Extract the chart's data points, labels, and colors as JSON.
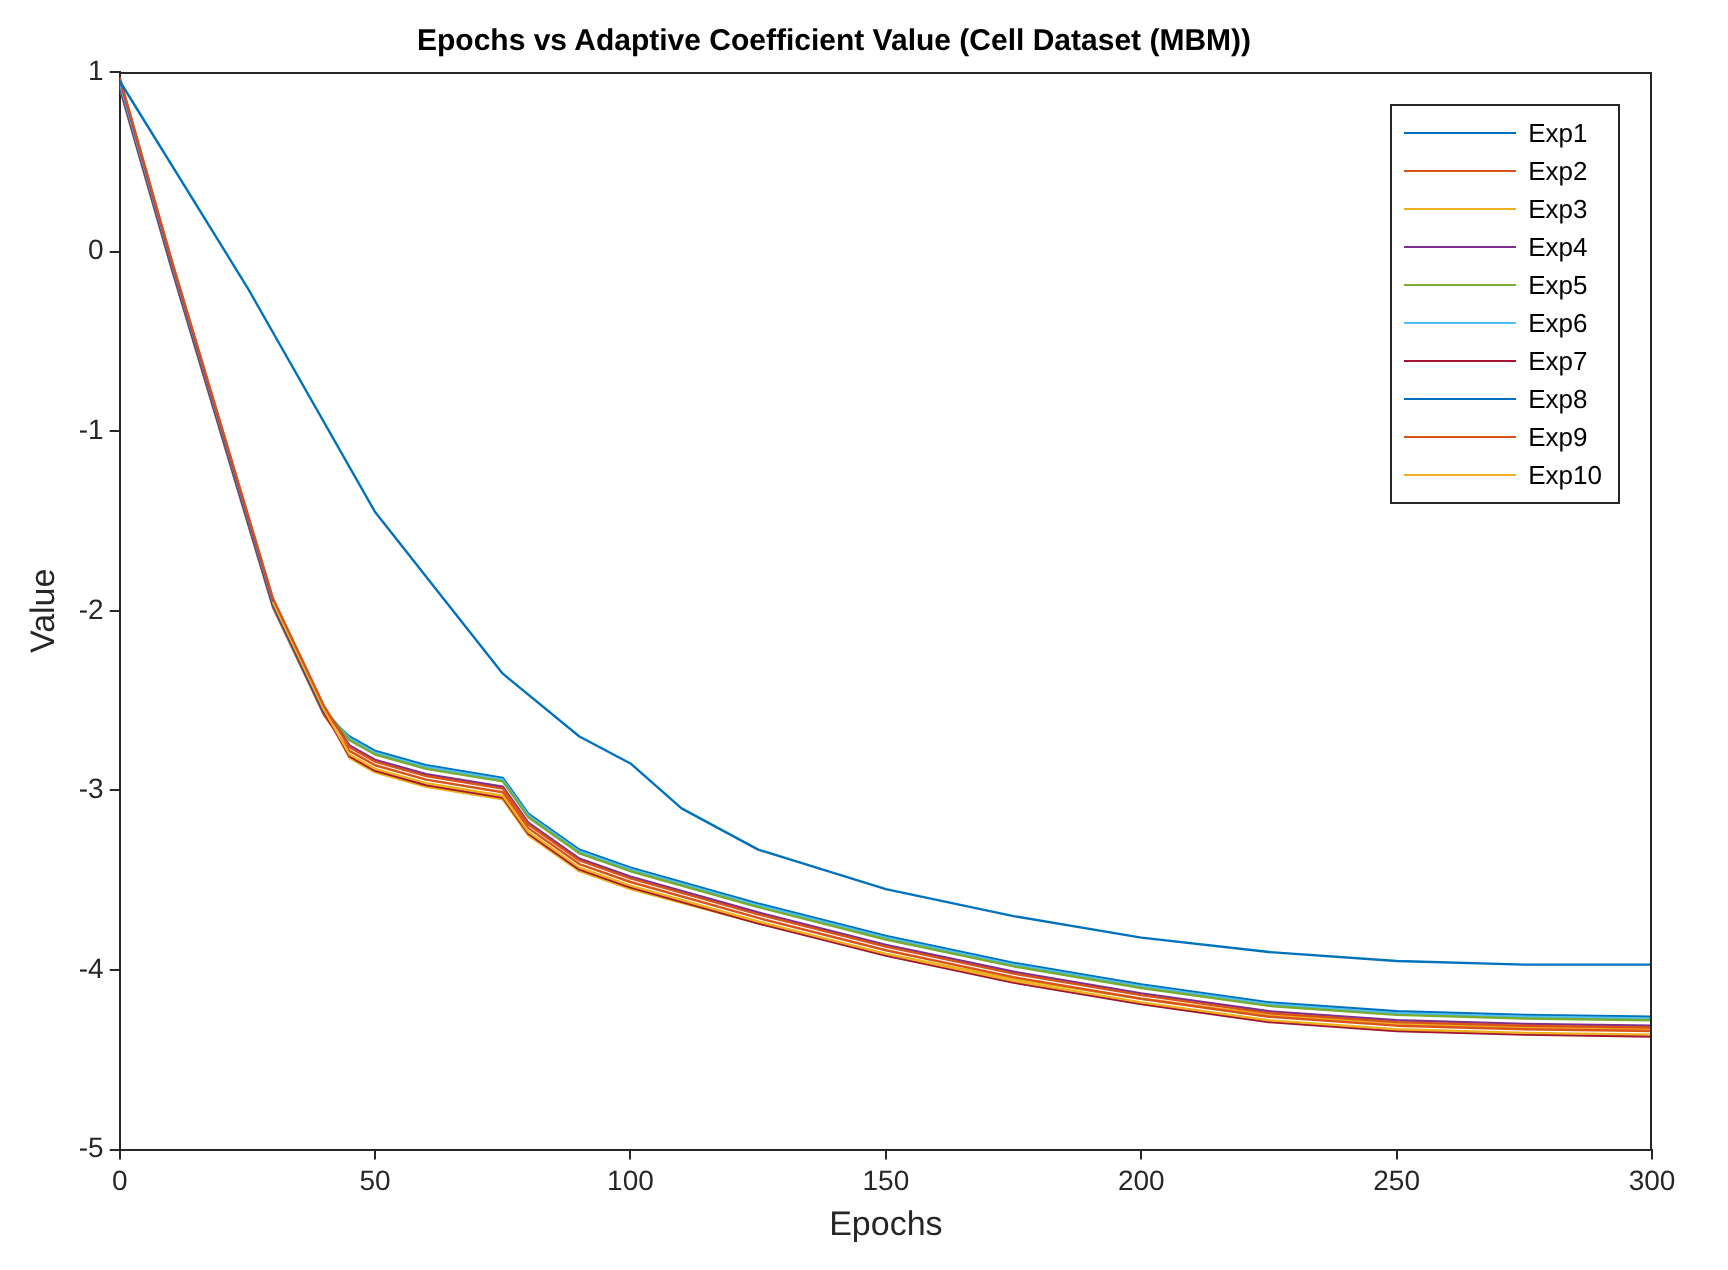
{
  "chart_data": {
    "type": "line",
    "title": "Epochs vs Adaptive Coefficient Value (Cell Dataset (MBM))",
    "xlabel": "Epochs",
    "ylabel": "Value",
    "x": [
      0,
      10,
      20,
      30,
      40,
      45,
      50,
      60,
      75,
      80,
      90,
      100,
      125,
      150,
      175,
      200,
      225,
      250,
      275,
      300
    ],
    "series": [
      {
        "name": "Exp1",
        "color": "#0072bd",
        "x": [
          0,
          25,
          50,
          75,
          90,
          100,
          110,
          125,
          150,
          175,
          200,
          225,
          250,
          275,
          300
        ],
        "values": [
          0.95,
          -0.2,
          -1.45,
          -2.35,
          -2.7,
          -2.85,
          -3.1,
          -3.33,
          -3.55,
          -3.7,
          -3.82,
          -3.9,
          -3.95,
          -3.97,
          -3.97
        ]
      },
      {
        "name": "Exp2",
        "color": "#d95319",
        "values": [
          0.97,
          -0.03,
          -0.98,
          -1.93,
          -2.53,
          -2.76,
          -2.84,
          -2.92,
          -2.99,
          -3.19,
          -3.39,
          -3.49,
          -3.69,
          -3.87,
          -4.02,
          -4.14,
          -4.24,
          -4.29,
          -4.31,
          -4.32
        ]
      },
      {
        "name": "Exp3",
        "color": "#edb120",
        "values": [
          null,
          null,
          null,
          -1.95,
          -2.55,
          -2.8,
          -2.88,
          -2.96,
          -3.03,
          -3.23,
          -3.43,
          -3.53,
          -3.73,
          -3.91,
          -4.06,
          -4.18,
          -4.28,
          -4.33,
          -4.35,
          -4.36
        ]
      },
      {
        "name": "Exp4",
        "color": "#7e2f8e",
        "values": [
          0.96,
          -0.04,
          -0.99,
          -1.94,
          -2.54,
          -2.75,
          -2.83,
          -2.91,
          -2.98,
          -3.18,
          -3.38,
          -3.48,
          -3.68,
          -3.86,
          -4.01,
          -4.13,
          -4.23,
          -4.28,
          -4.3,
          -4.31
        ]
      },
      {
        "name": "Exp5",
        "color": "#77ac30",
        "values": [
          null,
          null,
          null,
          -1.95,
          -2.55,
          -2.72,
          -2.8,
          -2.88,
          -2.95,
          -3.15,
          -3.35,
          -3.45,
          -3.65,
          -3.83,
          -3.98,
          -4.1,
          -4.2,
          -4.25,
          -4.27,
          -4.28
        ]
      },
      {
        "name": "Exp6",
        "color": "#4dbeee",
        "values": [
          0.94,
          -0.05,
          -1.0,
          -1.95,
          -2.55,
          -2.71,
          -2.79,
          -2.87,
          -2.94,
          -3.14,
          -3.34,
          -3.44,
          -3.64,
          -3.82,
          -3.97,
          -4.09,
          -4.19,
          -4.24,
          -4.26,
          -4.27
        ]
      },
      {
        "name": "Exp7",
        "color": "#a2142f",
        "values": [
          0.93,
          -0.06,
          -1.01,
          -1.96,
          -2.56,
          -2.81,
          -2.89,
          -2.97,
          -3.04,
          -3.24,
          -3.44,
          -3.54,
          -3.74,
          -3.92,
          -4.07,
          -4.19,
          -4.29,
          -4.34,
          -4.36,
          -4.37
        ]
      },
      {
        "name": "Exp8",
        "color": "#0072bd",
        "values": [
          0.92,
          -0.07,
          -1.02,
          -1.97,
          -2.57,
          -2.7,
          -2.78,
          -2.86,
          -2.93,
          -3.13,
          -3.33,
          -3.43,
          -3.63,
          -3.81,
          -3.96,
          -4.08,
          -4.18,
          -4.23,
          -4.25,
          -4.26
        ]
      },
      {
        "name": "Exp9",
        "color": "#d95319",
        "values": [
          0.91,
          -0.08,
          -1.03,
          -1.98,
          -2.58,
          -2.78,
          -2.86,
          -2.94,
          -3.01,
          -3.21,
          -3.41,
          -3.51,
          -3.71,
          -3.89,
          -4.04,
          -4.16,
          -4.26,
          -4.31,
          -4.33,
          -4.34
        ]
      },
      {
        "name": "Exp10",
        "color": "#edb120",
        "values": [
          null,
          null,
          null,
          -1.95,
          -2.55,
          -2.82,
          -2.9,
          -2.98,
          -3.05,
          -3.25,
          -3.45,
          -3.55,
          -3.74,
          -3.91,
          -4.05,
          -4.16,
          -4.25,
          -4.3,
          -4.32,
          -4.33
        ]
      }
    ],
    "xlim": [
      0,
      300
    ],
    "xticks": [
      0,
      50,
      100,
      150,
      200,
      250,
      300
    ],
    "ylim": [
      -5,
      1
    ],
    "yticks": [
      -5,
      -4,
      -3,
      -2,
      -1,
      0,
      1
    ],
    "grid": false,
    "legend": "top right",
    "marker": "none",
    "line_style": "solid"
  }
}
